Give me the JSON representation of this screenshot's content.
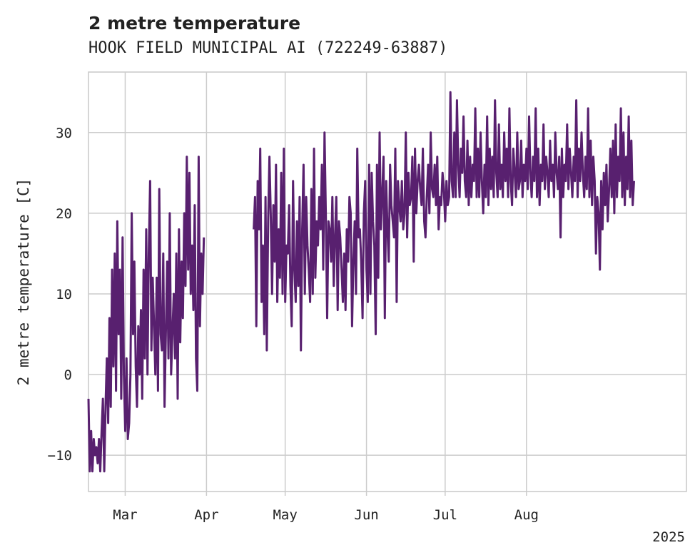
{
  "chart_data": {
    "type": "line",
    "title": "2 metre temperature",
    "subtitle": "HOOK FIELD MUNICIPAL AI (722249-63887)",
    "ylabel": "2 metre temperature [C]",
    "xlabel": "",
    "x_year_label": "2025",
    "xlim_days": [
      -14,
      214
    ],
    "ylim": [
      -14.5,
      37.5
    ],
    "grid": true,
    "x_ticks": [
      {
        "day": 0,
        "label": "Mar"
      },
      {
        "day": 31,
        "label": "Apr"
      },
      {
        "day": 61,
        "label": "May"
      },
      {
        "day": 92,
        "label": "Jun"
      },
      {
        "day": 122,
        "label": "Jul"
      },
      {
        "day": 153,
        "label": "Aug"
      }
    ],
    "y_ticks": [
      {
        "value": -10,
        "label": "−10"
      },
      {
        "value": 0,
        "label": "0"
      },
      {
        "value": 10,
        "label": "10"
      },
      {
        "value": 20,
        "label": "20"
      },
      {
        "value": 30,
        "label": "30"
      }
    ],
    "series": [
      {
        "name": "2 metre temperature",
        "color": "#58206f",
        "segments": [
          {
            "start_day": -14,
            "step_days": 0.5,
            "values": [
              -3,
              -12,
              -7,
              -12,
              -8,
              -10,
              -9,
              -11,
              -8,
              -12,
              -7,
              -3,
              -12,
              -4,
              2,
              -6,
              7,
              -4,
              13,
              1,
              15,
              -2,
              19,
              5,
              13,
              -3,
              17,
              0,
              -7,
              2,
              -8,
              -6,
              0,
              20,
              5,
              14,
              1,
              -4,
              6,
              0,
              8,
              -3,
              13,
              2,
              18,
              0,
              15,
              24,
              3,
              12,
              6,
              0,
              12,
              -2,
              23,
              5,
              3,
              15,
              -4,
              5,
              14,
              2,
              20,
              0,
              5,
              10,
              2,
              15,
              -3,
              18,
              4,
              14,
              7,
              20,
              11,
              27,
              13,
              25,
              10,
              16,
              8,
              21,
              2,
              -2,
              27,
              6,
              15,
              10,
              17
            ]
          },
          {
            "start_day": 49,
            "step_days": 0.5,
            "values": [
              18,
              22,
              6,
              24,
              18,
              28,
              9,
              16,
              5,
              22,
              3,
              19,
              27,
              20,
              10,
              21,
              14,
              26,
              9,
              18,
              12,
              25,
              10,
              28,
              9,
              16,
              15,
              21,
              11,
              6,
              24,
              13,
              9,
              19,
              11,
              22,
              3,
              18,
              26,
              10,
              22,
              16,
              13,
              9,
              23,
              10,
              28,
              12,
              19,
              16,
              22,
              18,
              26,
              13,
              30,
              20,
              7,
              19,
              18,
              14,
              22,
              11,
              17,
              22,
              8,
              19,
              17,
              13,
              9,
              15,
              8,
              18,
              14,
              22,
              20,
              6,
              14,
              19,
              10,
              28,
              17,
              18,
              14,
              7,
              20,
              24,
              13,
              9,
              26,
              10,
              25,
              19,
              16,
              5,
              26,
              12,
              30,
              18,
              22,
              27,
              7,
              24,
              18,
              14,
              26,
              21,
              19,
              17,
              28,
              9,
              24,
              21,
              19,
              24,
              18,
              20,
              30,
              17,
              25,
              21,
              22,
              27,
              14,
              28,
              20,
              24,
              26,
              23,
              21,
              28,
              19,
              17,
              22,
              26,
              20,
              30,
              23,
              22,
              26,
              21,
              27,
              18,
              22,
              21,
              25,
              23,
              19,
              24,
              21,
              22,
              35,
              24,
              22,
              30,
              22,
              34,
              26,
              22,
              28,
              25,
              32,
              24,
              22,
              29,
              21,
              27,
              22,
              26,
              24,
              33,
              22,
              28,
              22,
              30,
              24,
              20,
              26,
              22,
              32,
              21,
              28,
              23,
              27,
              22,
              34,
              25,
              22,
              31,
              23,
              26,
              22,
              30,
              24,
              28,
              22,
              33,
              24,
              21,
              28,
              25,
              22,
              30,
              23,
              24,
              29,
              22,
              26,
              24,
              28,
              23,
              32,
              25,
              22,
              27,
              24,
              33,
              22,
              28,
              21,
              26,
              24,
              31,
              23,
              27,
              25,
              22,
              29,
              24,
              26,
              22,
              30,
              25,
              23,
              27,
              17,
              28,
              22,
              26,
              24,
              31,
              23,
              28,
              25,
              22,
              27,
              24,
              34,
              22,
              28,
              24,
              30,
              25,
              22,
              27,
              23,
              33,
              22,
              29,
              21,
              27,
              24,
              15,
              22,
              20,
              13,
              24,
              18,
              25,
              21,
              26,
              19,
              23,
              28,
              22,
              29,
              20,
              31,
              22,
              27,
              24,
              33,
              22,
              30,
              21,
              27,
              23,
              32,
              22,
              29,
              21,
              24
            ]
          }
        ]
      }
    ]
  }
}
